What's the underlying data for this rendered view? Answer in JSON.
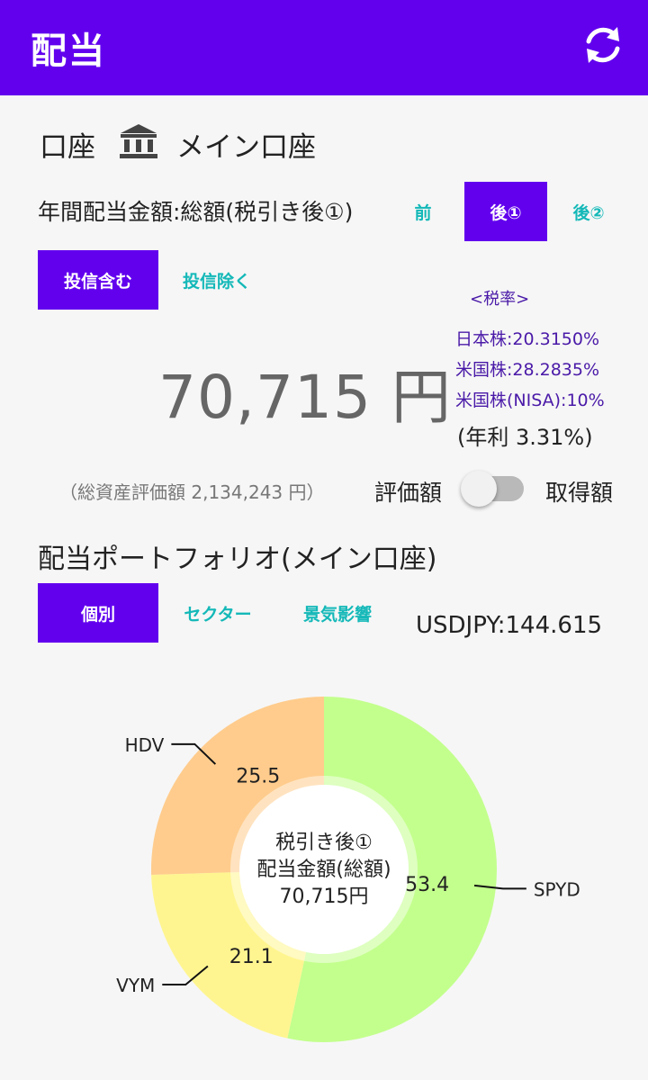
{
  "appbar": {
    "title": "配当",
    "refresh_icon": "refresh-icon"
  },
  "account": {
    "label": "口座",
    "icon": "bank-icon",
    "name": "メイン口座"
  },
  "dividend": {
    "header": "年間配当金額:総額(税引き後①)",
    "tax_tabs": [
      {
        "label": "前",
        "active": false
      },
      {
        "label": "後①",
        "active": true
      },
      {
        "label": "後②",
        "active": false
      }
    ],
    "fund_tabs": [
      {
        "label": "投信含む",
        "active": true
      },
      {
        "label": "投信除く",
        "active": false
      }
    ],
    "tax_rates": {
      "title": "<税率>",
      "jp": "日本株:20.3150%",
      "us": "米国株:28.2835%",
      "us_nisa": "米国株(NISA):10%"
    },
    "amount": "70,715 円",
    "yield": "(年利 3.31%)",
    "total_assets": "（総資産評価額 2,134,243 円）",
    "toggle": {
      "left": "評価額",
      "right": "取得額",
      "on": false
    }
  },
  "portfolio": {
    "title": "配当ポートフォリオ(メイン口座)",
    "tabs": [
      {
        "label": "個別",
        "active": true
      },
      {
        "label": "セクター",
        "active": false
      },
      {
        "label": "景気影響",
        "active": false
      }
    ],
    "fx": "USDJPY:144.615"
  },
  "chart_data": {
    "type": "pie",
    "donut": true,
    "center": [
      "税引き後①",
      "配当金額(総額)",
      "70,715円"
    ],
    "series": [
      {
        "name": "SPYD",
        "value": 53.4,
        "color": "#c3ff8d"
      },
      {
        "name": "VYM",
        "value": 21.1,
        "color": "#fff590"
      },
      {
        "name": "HDV",
        "value": 25.5,
        "color": "#ffcc8d"
      }
    ]
  }
}
